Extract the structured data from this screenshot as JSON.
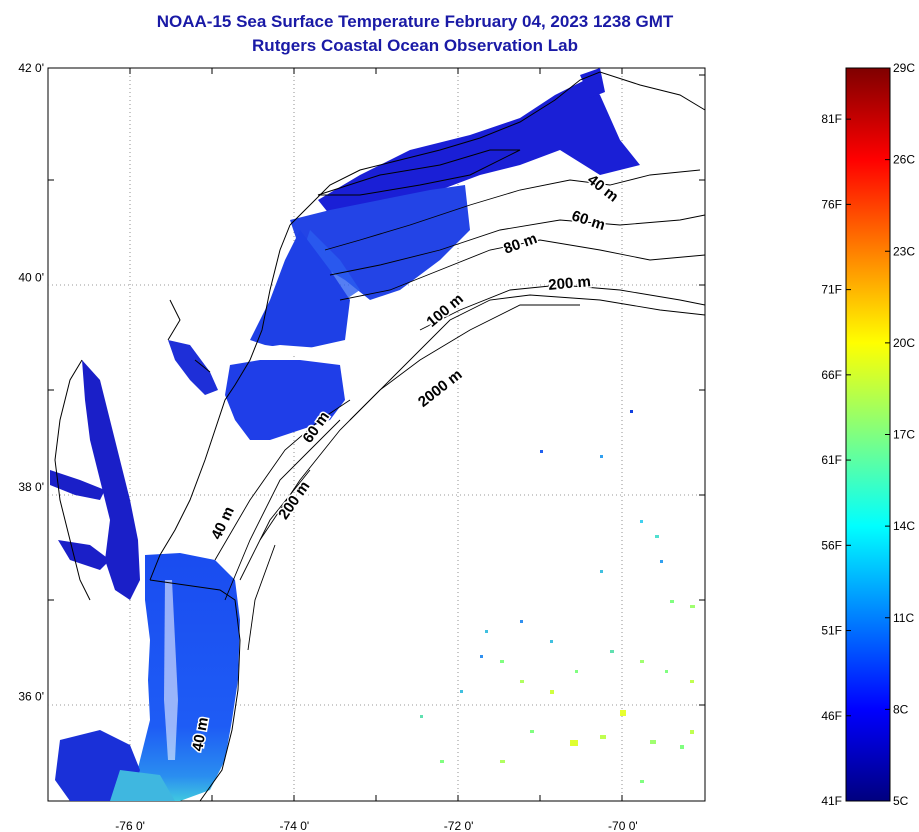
{
  "title_line1": "NOAA-15 Sea Surface Temperature February 04, 2023 1238 GMT",
  "title_line2": "Rutgers Coastal Ocean Observation Lab",
  "axes": {
    "x_ticks": [
      "-76 0'",
      "-74 0'",
      "-72 0'",
      "-70 0'"
    ],
    "x_values": [
      -76,
      -74,
      -72,
      -70
    ],
    "y_ticks": [
      "42 0'",
      "40 0'",
      "38 0'",
      "36 0'"
    ],
    "y_values": [
      42,
      40,
      38,
      36
    ],
    "lon_range": [
      -77,
      -69
    ],
    "lat_range": [
      35,
      42
    ],
    "grid": true
  },
  "contour_labels": [
    {
      "text": "40 m"
    },
    {
      "text": "60 m"
    },
    {
      "text": "80 m"
    },
    {
      "text": "200 m"
    },
    {
      "text": "100 m"
    },
    {
      "text": "2000 m"
    },
    {
      "text": "60 m"
    },
    {
      "text": "40 m"
    },
    {
      "text": "200 m"
    },
    {
      "text": "40 m"
    }
  ],
  "colorbar": {
    "range_c": [
      5,
      29
    ],
    "range_f": [
      41,
      84
    ],
    "celsius_labels": [
      "29C",
      "26C",
      "23C",
      "20C",
      "17C",
      "14C",
      "11C",
      "8C",
      "5C"
    ],
    "fahrenheit_labels": [
      "81F",
      "76F",
      "71F",
      "66F",
      "61F",
      "56F",
      "51F",
      "46F",
      "41F"
    ],
    "colors": [
      "#00007f",
      "#0000ff",
      "#0080ff",
      "#00ffff",
      "#80ff80",
      "#ffff00",
      "#ff8000",
      "#ff0000",
      "#7f0000"
    ]
  }
}
